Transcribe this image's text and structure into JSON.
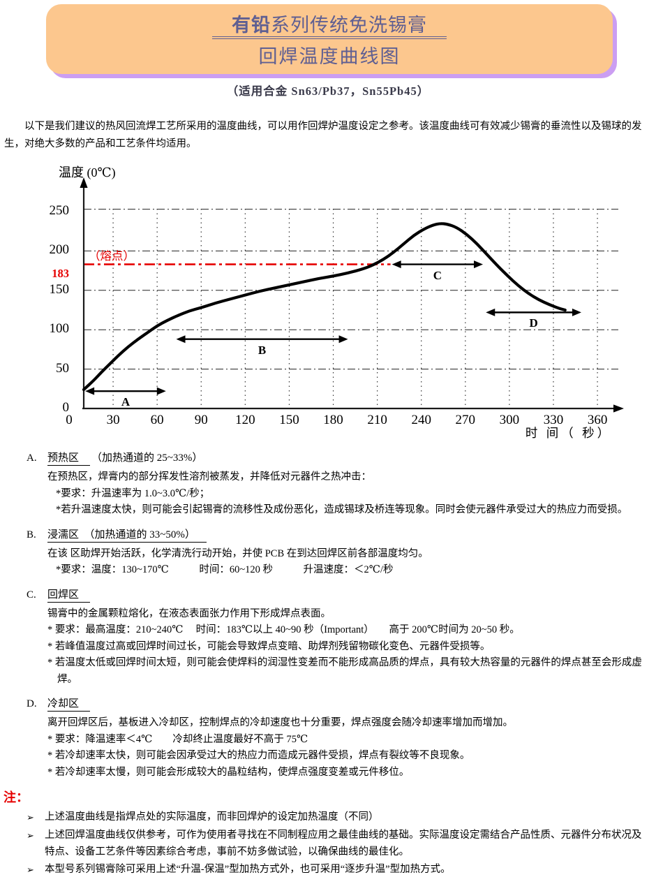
{
  "header": {
    "title_bold": "有铅",
    "title_rest": "系列传统免洗锡膏",
    "title_line2": "回焊温度曲线图",
    "subtitle": "（适用合金 Sn63/Pb37，Sn55Pb45）",
    "bg_color": "#fcc78e",
    "shadow_color": "#cb9ef2",
    "title_color": "#5f5f92"
  },
  "intro": "以下是我们建议的热风回流焊工艺所采用的温度曲线，可以用作回焊炉温度设定之参考。该温度曲线可有效减少锡膏的垂流性以及锡球的发生，对绝大多数的产品和工艺条件均适用。",
  "chart_data": {
    "type": "line",
    "title": "回焊温度曲线图",
    "ylabel": "温度 (0℃)",
    "xlabel": "时 间（ 秒）",
    "xlim": [
      0,
      390
    ],
    "ylim": [
      0,
      265
    ],
    "grid_on": true,
    "xticks": [
      0,
      30,
      60,
      90,
      120,
      150,
      180,
      210,
      240,
      270,
      300,
      330,
      360
    ],
    "yticks": [
      0,
      50,
      100,
      150,
      200,
      250
    ],
    "x_gridlines": [
      30,
      60,
      90,
      120,
      150,
      180,
      210,
      240,
      270,
      300,
      330,
      360
    ],
    "y_gridlines": [
      50,
      100,
      150,
      200,
      253
    ],
    "melting_point": {
      "value": 183,
      "label": "（熔点）",
      "color": "#e60000",
      "line_end_t": 219
    },
    "series": [
      {
        "name": "回焊温度曲线",
        "color": "#000000",
        "points": [
          [
            10,
            24
          ],
          [
            16,
            34
          ],
          [
            22,
            46
          ],
          [
            28,
            57
          ],
          [
            34,
            68
          ],
          [
            40,
            78
          ],
          [
            47,
            88
          ],
          [
            54,
            97
          ],
          [
            60,
            105
          ],
          [
            67,
            112
          ],
          [
            74,
            118
          ],
          [
            82,
            124
          ],
          [
            90,
            128
          ],
          [
            100,
            134
          ],
          [
            110,
            139
          ],
          [
            120,
            144
          ],
          [
            130,
            149
          ],
          [
            140,
            153
          ],
          [
            150,
            157
          ],
          [
            160,
            161
          ],
          [
            170,
            165
          ],
          [
            180,
            168
          ],
          [
            190,
            172
          ],
          [
            200,
            177
          ],
          [
            207,
            182
          ],
          [
            214,
            189
          ],
          [
            221,
            198
          ],
          [
            228,
            209
          ],
          [
            235,
            220
          ],
          [
            242,
            228
          ],
          [
            248,
            233
          ],
          [
            253,
            235
          ],
          [
            258,
            234
          ],
          [
            264,
            230
          ],
          [
            271,
            221
          ],
          [
            278,
            209
          ],
          [
            285,
            195
          ],
          [
            292,
            181
          ],
          [
            299,
            168
          ],
          [
            306,
            156
          ],
          [
            313,
            146
          ],
          [
            320,
            138
          ],
          [
            327,
            132
          ],
          [
            334,
            127
          ],
          [
            338,
            125
          ]
        ]
      }
    ],
    "zones": [
      {
        "label": "A",
        "t_start": 11,
        "t_end": 66,
        "temp": 22
      },
      {
        "label": "B",
        "t_start": 73,
        "t_end": 190,
        "temp": 88
      },
      {
        "label": "C",
        "t_start": 220,
        "t_end": 282,
        "temp": 183
      },
      {
        "label": "D",
        "t_start": 284,
        "t_end": 349,
        "temp": 122
      }
    ]
  },
  "sections": [
    {
      "letter": "A.",
      "title": "预热区",
      "suffix": "（加热通道的 25~33%）",
      "underline_suffix": false,
      "lines": [
        {
          "t": "在预热区，焊膏内的部分挥发性溶剂被蒸发，并降低对元器件之热冲击：",
          "i": 0
        },
        {
          "t": "*要求：升温速率为 1.0~3.0℃/秒；",
          "i": 1
        },
        {
          "t": "*若升温速度太快，则可能会引起锡膏的流移性及成份恶化，造成锡球及桥连等现象。同时会使元器件承受过大的热应力而受损。",
          "i": 1
        }
      ]
    },
    {
      "letter": "B.",
      "title": "浸濡区",
      "suffix": "（加热通道的 33~50%）",
      "underline_suffix": true,
      "lines": [
        {
          "t": "在该 区助焊开始活跃，化学清洗行动开始，并使 PCB 在到达回焊区前各部温度均匀。",
          "i": 0
        },
        {
          "t": "*要求：温度：130~170℃　　　时间：60~120 秒　　　升温速度：＜2℃/秒",
          "i": 1
        }
      ]
    },
    {
      "letter": "C.",
      "title": "回焊区",
      "suffix": "",
      "underline_suffix": false,
      "lines": [
        {
          "t": "锡膏中的金属颗粒熔化，在液态表面张力作用下形成焊点表面。",
          "i": 0
        },
        {
          "t": "* 要求：最高温度：210~240℃　 时间：183℃以上 40~90 秒（Important）　　高于 200℃时间为 20~50 秒。",
          "i": 0
        },
        {
          "t": "* 若峰值温度过高或回焊时间过长，可能会导致焊点变暗、助焊剂残留物碳化变色、元器件受损等。",
          "i": 0
        },
        {
          "t": "* 若温度太低或回焊时间太短，则可能会使焊料的润湿性变差而不能形成高品质的焊点，具有较大热容量的元器件的焊点甚至会形成虚焊。",
          "i": 0
        }
      ]
    },
    {
      "letter": "D.",
      "title": "冷却区",
      "suffix": "",
      "underline_suffix": false,
      "lines": [
        {
          "t": "离开回焊区后，基板进入冷却区，控制焊点的冷却速度也十分重要，焊点强度会随冷却速率增加而增加。",
          "i": 0
        },
        {
          "t": "* 要求：降温速率＜4℃　　冷却终止温度最好不高于 75℃",
          "i": 0
        },
        {
          "t": "* 若冷却速率太快，则可能会因承受过大的热应力而造成元器件受损，焊点有裂纹等不良现象。",
          "i": 0
        },
        {
          "t": "* 若冷却速率太慢，则可能会形成较大的晶粒结构，使焊点强度变差或元件移位。",
          "i": 0
        }
      ]
    }
  ],
  "notes": {
    "label": "注：",
    "bullet": "➢",
    "items": [
      "上述温度曲线是指焊点处的实际温度，而非回焊炉的设定加热温度（不同）",
      "上述回焊温度曲线仅供参考，可作为使用者寻找在不同制程应用之最佳曲线的基础。实际温度设定需结合产品性质、元器件分布状况及特点、设备工艺条件等因素综合考虑，事前不妨多做试验，以确保曲线的最佳化。",
      "本型号系列锡膏除可采用上述“升温-保温”型加热方式外，也可采用“逐步升温”型加热方式。"
    ]
  }
}
